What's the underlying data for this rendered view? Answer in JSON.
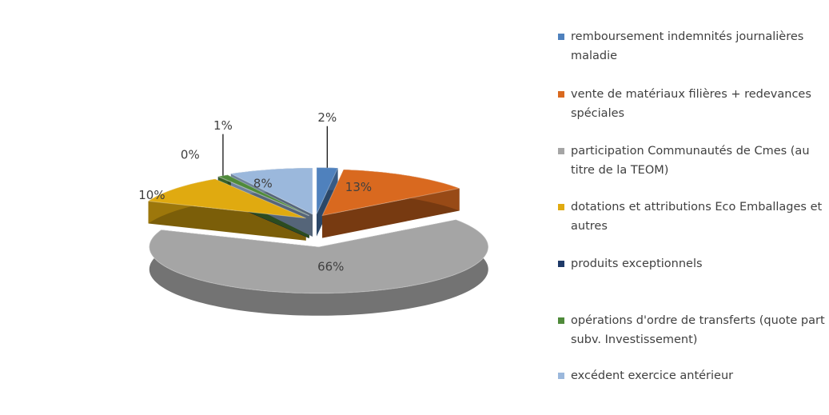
{
  "chart_data": {
    "type": "pie3d",
    "categories": [
      "remboursement indemnités journalières maladie",
      "vente de matériaux filières + redevances spéciales",
      "participation Communautés de Cmes (au titre de la TEOM)",
      "dotations et attributions Eco Emballages et autres",
      "produits exceptionnels",
      "opérations d'ordre de transferts (quote part subv. Investissement)",
      "excédent exercice antérieur"
    ],
    "values": [
      2,
      13,
      66,
      10,
      0,
      1,
      8
    ],
    "value_labels": [
      "2%",
      "13%",
      "66%",
      "10%",
      "0%",
      "1%",
      "8%"
    ],
    "colors": [
      "#4f81bd",
      "#d9691f",
      "#a5a5a5",
      "#e0aa10",
      "#1f3a68",
      "#4f8a3a",
      "#9bb8dc"
    ],
    "legend": "right"
  }
}
